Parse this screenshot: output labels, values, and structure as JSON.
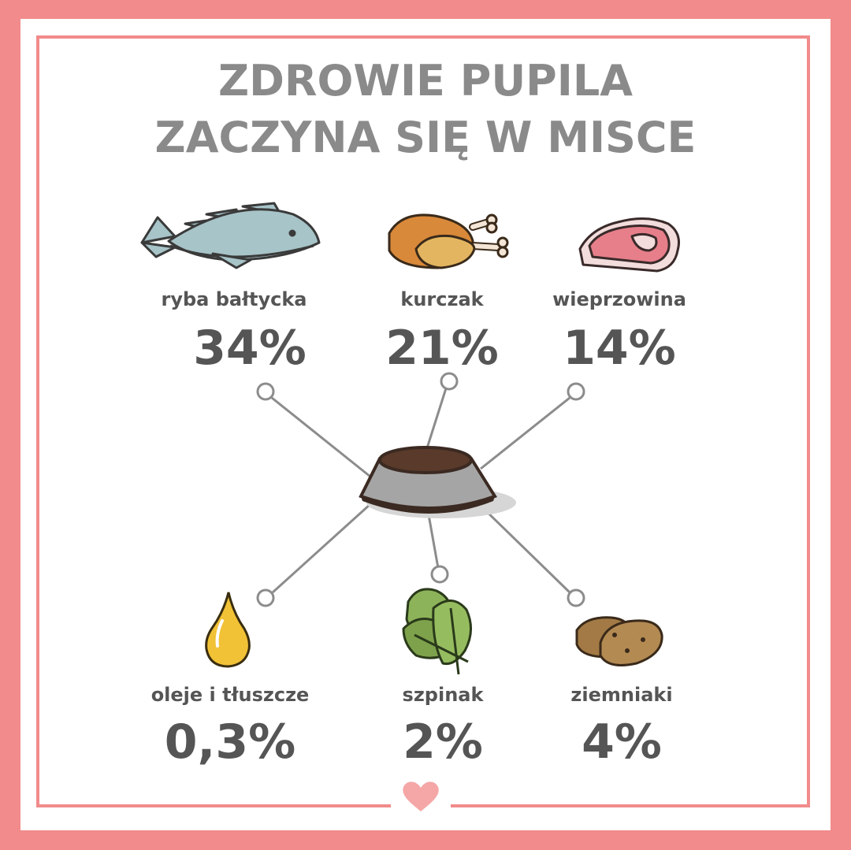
{
  "title": {
    "line1": "ZDROWIE PUPILA",
    "line2": "ZACZYNA SIĘ W MISCE"
  },
  "ingredients": [
    {
      "name": "ryba bałtycka",
      "percent": "34%",
      "icon": "fish-icon"
    },
    {
      "name": "kurczak",
      "percent": "21%",
      "icon": "chicken-icon"
    },
    {
      "name": "wieprzowina",
      "percent": "14%",
      "icon": "pork-icon"
    },
    {
      "name": "oleje i tłuszcze",
      "percent": "0,3%",
      "icon": "oil-drop-icon"
    },
    {
      "name": "szpinak",
      "percent": "2%",
      "icon": "spinach-icon"
    },
    {
      "name": "ziemniaki",
      "percent": "4%",
      "icon": "potato-icon"
    }
  ],
  "center_icon": "bowl-icon",
  "footer_icon": "heart-icon",
  "colors": {
    "border": "#f28b8b",
    "title": "#8a8a8a",
    "text": "#555555",
    "connector": "#8c8c8c"
  }
}
